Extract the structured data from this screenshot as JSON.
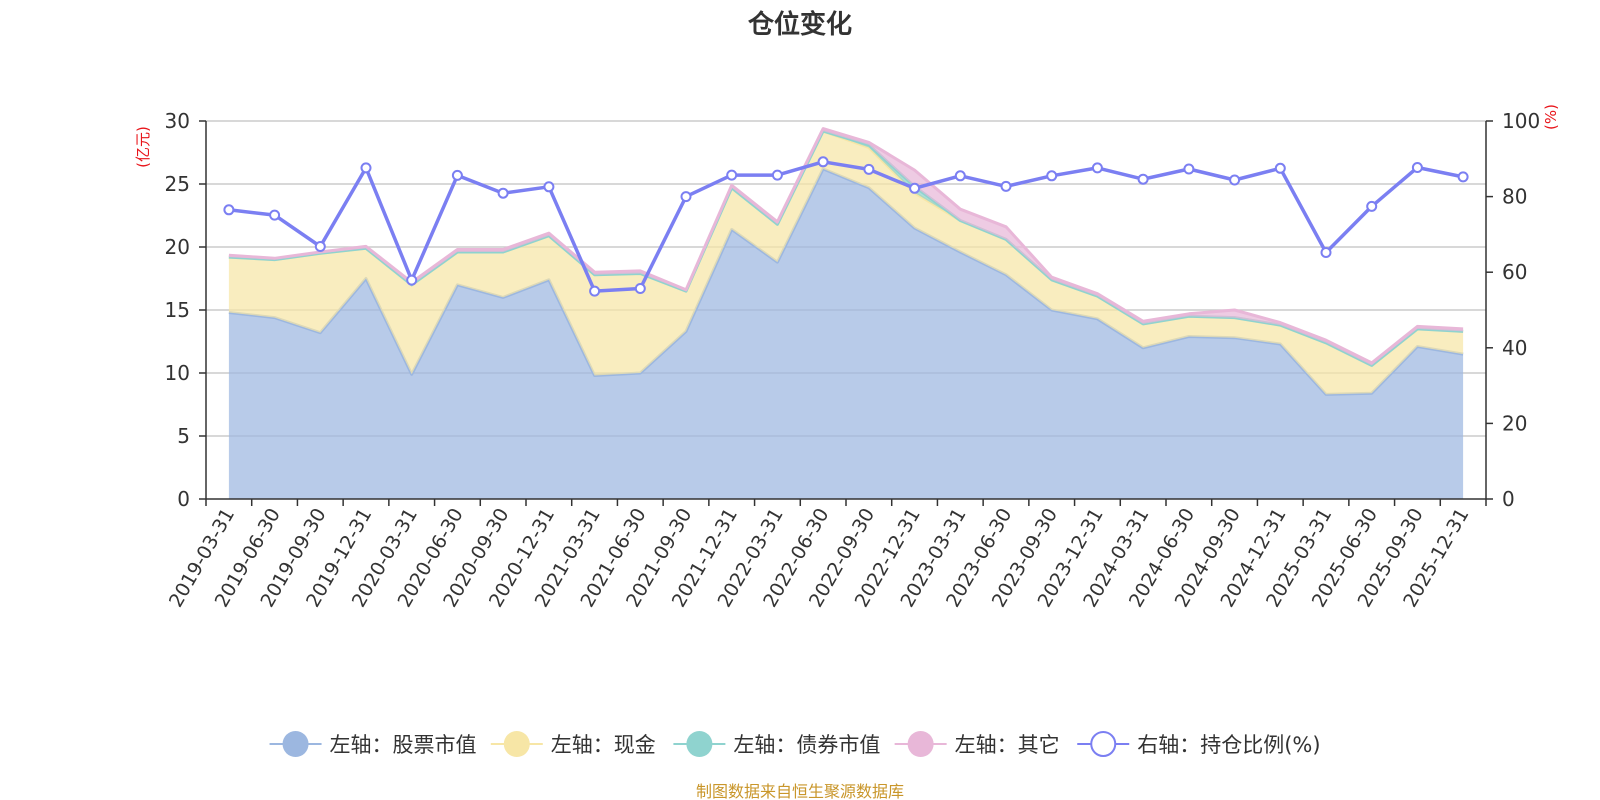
{
  "chart_data": {
    "type": "area",
    "title": "仓位变化",
    "left_unit": "(亿元)",
    "right_unit": "(%)",
    "ylim_left": [
      0,
      30
    ],
    "yticks_left": [
      0,
      5,
      10,
      15,
      20,
      25,
      30
    ],
    "ylim_right": [
      0,
      100
    ],
    "yticks_right": [
      0,
      20,
      40,
      60,
      80,
      100
    ],
    "categories": [
      "2019-03-31",
      "2019-06-30",
      "2019-09-30",
      "2019-12-31",
      "2020-03-31",
      "2020-06-30",
      "2020-09-30",
      "2020-12-31",
      "2021-03-31",
      "2021-06-30",
      "2021-09-30",
      "2021-12-31",
      "2022-03-31",
      "2022-06-30",
      "2022-09-30",
      "2022-12-31",
      "2023-03-31",
      "2023-06-30",
      "2023-09-30",
      "2023-12-31",
      "2024-03-31",
      "2024-06-30",
      "2024-09-30",
      "2024-12-31",
      "2025-03-31",
      "2025-06-30",
      "2025-09-30",
      "2025-12-31"
    ],
    "series": [
      {
        "name": "左轴：股票市值",
        "axis": "left",
        "color": "#9cb7e0",
        "values": [
          14.8,
          14.4,
          13.2,
          17.5,
          9.9,
          17.0,
          16.0,
          17.4,
          9.8,
          10.0,
          13.3,
          21.4,
          18.8,
          26.2,
          24.7,
          21.5,
          19.6,
          17.8,
          15.0,
          14.3,
          12.0,
          12.9,
          12.8,
          12.3,
          8.3,
          8.4,
          12.1,
          11.5
        ]
      },
      {
        "name": "左轴：现金",
        "axis": "left",
        "color": "#f7e6a6",
        "values": [
          4.4,
          4.6,
          6.3,
          2.4,
          7.1,
          2.6,
          3.6,
          3.5,
          8.0,
          7.9,
          3.2,
          3.3,
          3.0,
          3.0,
          3.2,
          2.8,
          2.5,
          2.8,
          2.4,
          1.8,
          1.9,
          1.6,
          1.6,
          1.5,
          4.1,
          2.2,
          1.4,
          1.8
        ]
      },
      {
        "name": "左轴：债券市值",
        "axis": "left",
        "color": "#8fd3cf",
        "values": [
          0,
          0,
          0,
          0,
          0,
          0,
          0,
          0,
          0,
          0,
          0,
          0,
          0,
          0,
          0.2,
          0.5,
          0,
          0,
          0,
          0,
          0,
          0,
          0,
          0,
          0,
          0,
          0,
          0
        ]
      },
      {
        "name": "左轴：其它",
        "axis": "left",
        "color": "#e8b7d8",
        "values": [
          0.15,
          0.1,
          0.1,
          0.15,
          0.2,
          0.2,
          0.2,
          0.2,
          0.2,
          0.2,
          0.1,
          0.2,
          0.2,
          0.2,
          0.2,
          1.3,
          0.9,
          1.0,
          0.2,
          0.2,
          0.2,
          0.2,
          0.6,
          0.2,
          0.2,
          0.2,
          0.2,
          0.2
        ]
      },
      {
        "name": "右轴：持仓比例(%)",
        "axis": "right",
        "color": "#7b7ff2",
        "values": [
          76.5,
          75.1,
          66.8,
          87.6,
          57.9,
          85.6,
          80.9,
          82.6,
          55.0,
          55.7,
          80.0,
          85.7,
          85.7,
          89.2,
          87.2,
          82.2,
          85.5,
          82.7,
          85.5,
          87.6,
          84.6,
          87.3,
          84.4,
          87.5,
          65.2,
          77.4,
          87.7,
          85.2
        ]
      }
    ]
  },
  "legend": [
    {
      "label": "左轴：股票市值",
      "color": "#9cb7e0",
      "kind": "area"
    },
    {
      "label": "左轴：现金",
      "color": "#f7e6a6",
      "kind": "area"
    },
    {
      "label": "左轴：债券市值",
      "color": "#8fd3cf",
      "kind": "area"
    },
    {
      "label": "左轴：其它",
      "color": "#e8b7d8",
      "kind": "area"
    },
    {
      "label": "右轴：持仓比例(%)",
      "color": "#7b7ff2",
      "kind": "line"
    }
  ],
  "source": "制图数据来自恒生聚源数据库",
  "colors": {
    "unit": "#e8141a",
    "source": "#c9962a",
    "axis": "#333333",
    "grid": "#cccccc"
  }
}
